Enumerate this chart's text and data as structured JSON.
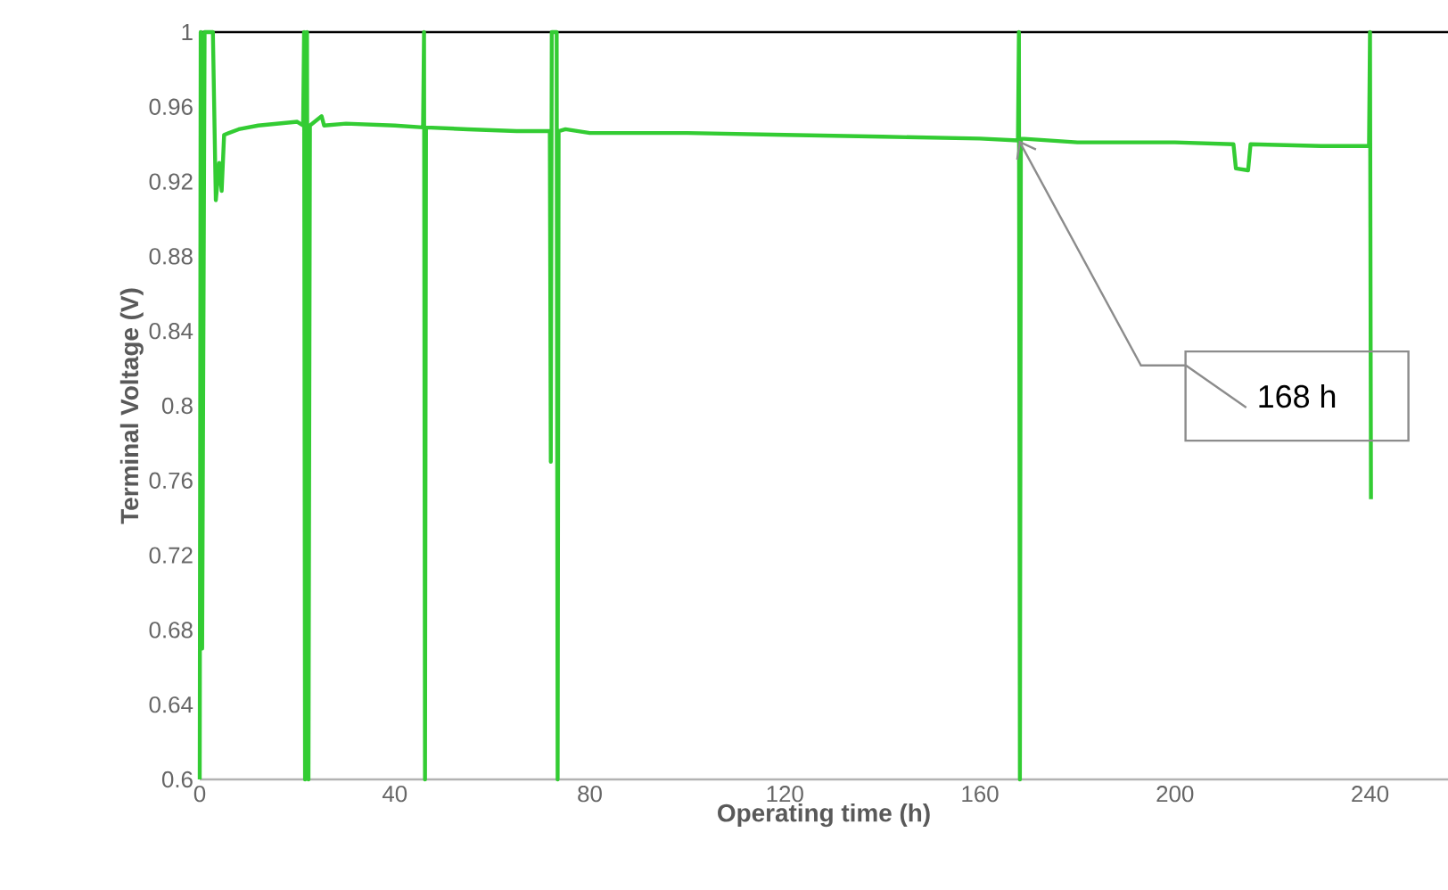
{
  "chart_data": {
    "type": "line",
    "xlabel": "Operating time (h)",
    "ylabel": "Terminal Voltage (V)",
    "x": [
      0,
      0.2,
      0.5,
      1,
      2.7,
      3.3,
      4,
      4.5,
      5,
      8,
      12,
      16,
      20,
      21.2,
      21.4,
      21.6,
      22,
      22.3,
      22.6,
      25,
      25.5,
      30,
      40,
      45.8,
      46,
      46.2,
      46.4,
      55,
      65,
      71.8,
      72,
      72.2,
      73.2,
      73.4,
      73.6,
      75,
      80,
      100,
      120,
      140,
      160,
      167.8,
      168,
      168.2,
      168.4,
      180,
      200,
      212,
      212.5,
      215,
      215.5,
      230,
      239.8,
      240,
      240.2
    ],
    "series": [
      {
        "color": "#33cc33",
        "values": [
          0.6,
          1,
          0.67,
          1,
          1,
          0.91,
          0.93,
          0.915,
          0.945,
          0.948,
          0.95,
          0.951,
          0.952,
          0.95,
          1,
          0.6,
          1,
          0.6,
          0.95,
          0.955,
          0.95,
          0.951,
          0.95,
          0.949,
          1,
          0.6,
          0.949,
          0.948,
          0.947,
          0.947,
          0.77,
          1,
          1,
          0.6,
          0.947,
          0.948,
          0.946,
          0.946,
          0.945,
          0.944,
          0.943,
          0.942,
          1,
          0.6,
          0.943,
          0.941,
          0.941,
          0.94,
          0.927,
          0.926,
          0.94,
          0.939,
          0.939,
          1,
          0.75
        ]
      }
    ],
    "xlim": [
      0,
      256
    ],
    "xticks": [
      0,
      40,
      80,
      120,
      160,
      200,
      240
    ],
    "ylim": [
      0.6,
      1
    ],
    "yticks": [
      0.6,
      0.64,
      0.68,
      0.72,
      0.76,
      0.8,
      0.84,
      0.88,
      0.92,
      0.96,
      1
    ],
    "grid": false,
    "marker": "none",
    "line_style": "solid",
    "annotations": [
      {
        "text": "168 h",
        "x": 168,
        "y": 0.942
      }
    ]
  }
}
